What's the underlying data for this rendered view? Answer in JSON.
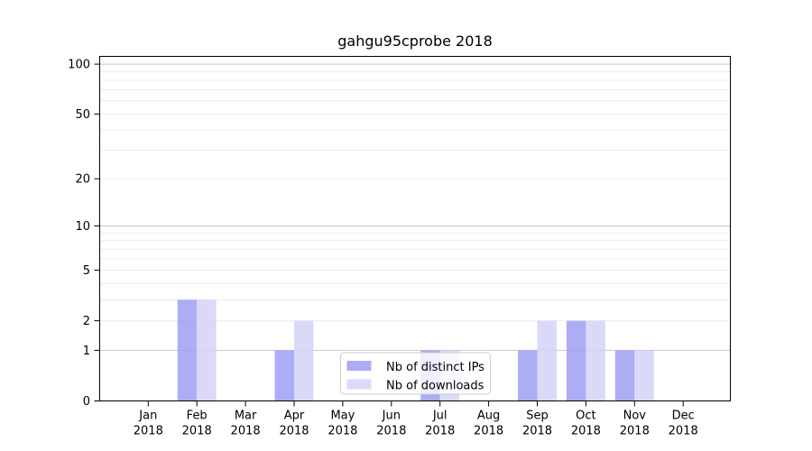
{
  "page": {
    "background": "#ffffff"
  },
  "chart_data": {
    "type": "bar",
    "title": "gahgu95cprobe 2018",
    "categories": [
      "Jan",
      "Feb",
      "Mar",
      "Apr",
      "May",
      "Jun",
      "Jul",
      "Aug",
      "Sep",
      "Oct",
      "Nov",
      "Dec"
    ],
    "year_label": "2018",
    "series": [
      {
        "name": "Nb of distinct IPs",
        "color": "#9f9ff5",
        "values": [
          0,
          3,
          0,
          1,
          0,
          0,
          1,
          0,
          1,
          2,
          1,
          0
        ]
      },
      {
        "name": "Nb of downloads",
        "color": "#d3d3f7",
        "values": [
          0,
          3,
          0,
          2,
          0,
          0,
          1,
          0,
          2,
          2,
          1,
          0
        ]
      }
    ],
    "xlabel": "",
    "ylabel": "",
    "yscale": "log1p",
    "ylim": [
      0,
      100
    ],
    "yticks": [
      0,
      1,
      2,
      5,
      10,
      20,
      50,
      100
    ],
    "grid": true,
    "legend_position": "lower center",
    "colors": {
      "axis": "#000000",
      "grid_minor": "#ececec",
      "grid_power_of_ten": "#c8c8c8",
      "legend_border": "#cccccc",
      "legend_background": "rgba(255,255,255,0.8)"
    }
  }
}
